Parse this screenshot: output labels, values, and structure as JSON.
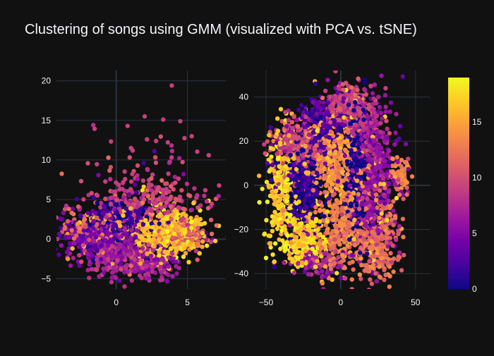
{
  "chart_data": {
    "type": "scatter",
    "title": "Clustering of songs using GMM (visualized with PCA vs. tSNE)",
    "background": "#111111",
    "grid_color": "#283442",
    "tick_color": "#f2f5fa",
    "colorscale": [
      "#0d0887",
      "#46039f",
      "#7201a8",
      "#9c179e",
      "#bd3786",
      "#d8576b",
      "#ed7953",
      "#fb9f3a",
      "#fdca26",
      "#f0f921"
    ],
    "colorbar": {
      "range": [
        0,
        19
      ],
      "ticks": [
        0,
        5,
        10,
        15
      ]
    },
    "panels": [
      {
        "name": "PCA",
        "xlim": [
          -4.2,
          7.7
        ],
        "ylim": [
          -6.3,
          21.3
        ],
        "xticks": [
          0,
          5
        ],
        "yticks": [
          -5,
          0,
          5,
          10,
          15,
          20
        ],
        "grid": true,
        "clusters": [
          {
            "cx": -1.5,
            "cy": 0.5,
            "sx": 1.2,
            "sy": 1.2,
            "c": 4,
            "n": 220
          },
          {
            "cx": 0.5,
            "cy": 2.5,
            "sx": 1.0,
            "sy": 1.0,
            "c": 1,
            "n": 200
          },
          {
            "cx": 4.0,
            "cy": 1.0,
            "sx": 1.0,
            "sy": 1.6,
            "c": 17,
            "n": 320
          },
          {
            "cx": 2.5,
            "cy": 0.5,
            "sx": 1.4,
            "sy": 1.5,
            "c": 16,
            "n": 150
          },
          {
            "cx": 1.5,
            "cy": -3.0,
            "sx": 1.5,
            "sy": 1.1,
            "c": 7,
            "n": 280
          },
          {
            "cx": 2.0,
            "cy": 4.5,
            "sx": 2.2,
            "sy": 1.6,
            "c": 9,
            "n": 280
          },
          {
            "cx": 5.0,
            "cy": 0.5,
            "sx": 0.8,
            "sy": 1.0,
            "c": 12,
            "n": 120
          },
          {
            "cx": -0.5,
            "cy": -1.0,
            "sx": 1.2,
            "sy": 1.3,
            "c": 6,
            "n": 200
          },
          {
            "cx": -2.0,
            "cy": 1.5,
            "sx": 1.0,
            "sy": 1.0,
            "c": 12,
            "n": 80
          },
          {
            "cx": 2.5,
            "cy": 9.0,
            "sx": 1.8,
            "sy": 2.5,
            "c": 9,
            "n": 45
          }
        ],
        "outliers": [
          [
            3.9,
            19.4,
            9
          ],
          [
            2.0,
            15.5,
            9
          ],
          [
            3.3,
            15.1,
            9
          ],
          [
            4.5,
            14.9,
            9
          ],
          [
            5.3,
            13.0,
            9
          ],
          [
            6.5,
            10.6,
            9
          ],
          [
            0.8,
            14.3,
            9
          ],
          [
            2.8,
            12.4,
            9
          ]
        ]
      },
      {
        "name": "tSNE",
        "xlim": [
          -58,
          60
        ],
        "ylim": [
          -47,
          52
        ],
        "xticks": [
          -50,
          0,
          50
        ],
        "yticks": [
          -40,
          -20,
          0,
          20,
          40
        ],
        "grid": true,
        "clusters": [
          {
            "cx": -40,
            "cy": 0,
            "sx": 5,
            "sy": 13,
            "c": 17,
            "n": 280
          },
          {
            "cx": -30,
            "cy": 20,
            "sx": 8,
            "sy": 5,
            "c": 9,
            "n": 200
          },
          {
            "cx": -25,
            "cy": -25,
            "sx": 8,
            "sy": 6,
            "c": 17,
            "n": 260
          },
          {
            "cx": -25,
            "cy": 0,
            "sx": 6,
            "sy": 10,
            "c": 1,
            "n": 280
          },
          {
            "cx": -12,
            "cy": 28,
            "sx": 8,
            "sy": 7,
            "c": 3,
            "n": 250
          },
          {
            "cx": -5,
            "cy": 12,
            "sx": 9,
            "sy": 10,
            "c": 14,
            "n": 340
          },
          {
            "cx": 0,
            "cy": -18,
            "sx": 8,
            "sy": 10,
            "c": 13,
            "n": 280
          },
          {
            "cx": 5,
            "cy": 38,
            "sx": 7,
            "sy": 4,
            "c": 9,
            "n": 180
          },
          {
            "cx": 10,
            "cy": 10,
            "sx": 3.5,
            "sy": 16,
            "c": 0,
            "n": 260
          },
          {
            "cx": 22,
            "cy": 5,
            "sx": 7,
            "sy": 18,
            "c": 6,
            "n": 480
          },
          {
            "cx": 25,
            "cy": -25,
            "sx": 7,
            "sy": 9,
            "c": 12,
            "n": 300
          },
          {
            "cx": 40,
            "cy": 4,
            "sx": 3,
            "sy": 4,
            "c": 13,
            "n": 90
          },
          {
            "cx": 15,
            "cy": 28,
            "sx": 6,
            "sy": 5,
            "c": 8,
            "n": 150
          },
          {
            "cx": -15,
            "cy": -35,
            "sx": 8,
            "sy": 3,
            "c": 7,
            "n": 100
          }
        ],
        "outliers": [
          [
            -17,
            46,
            1
          ],
          [
            20,
            45,
            9
          ],
          [
            30,
            44,
            9
          ],
          [
            -45,
            20,
            13
          ],
          [
            0,
            -42,
            4
          ],
          [
            45,
            12,
            9
          ]
        ]
      }
    ]
  }
}
